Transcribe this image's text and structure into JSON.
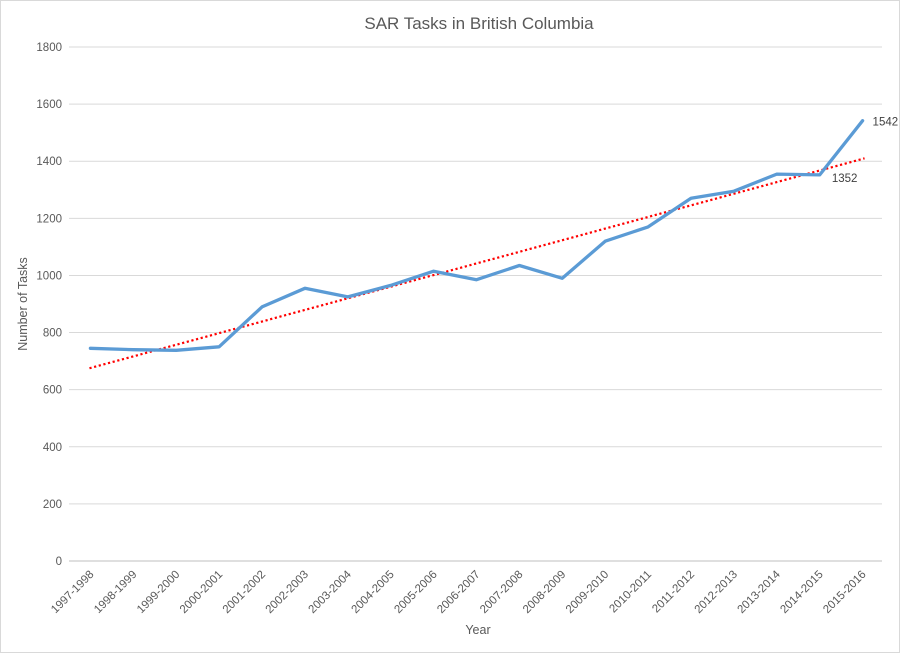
{
  "chart_data": {
    "type": "line",
    "title": "SAR Tasks in British Columbia",
    "xlabel": "Year",
    "ylabel": "Number of Tasks",
    "categories": [
      "1997-1998",
      "1998-1999",
      "1999-2000",
      "2000-2001",
      "2001-2002",
      "2002-2003",
      "2003-2004",
      "2004-2005",
      "2005-2006",
      "2006-2007",
      "2007-2008",
      "2008-2009",
      "2009-2010",
      "2010-2011",
      "2011-2012",
      "2012-2013",
      "2013-2014",
      "2014-2015",
      "2015-2016"
    ],
    "series": [
      {
        "name": "SAR Tasks",
        "color": "#5B9BD5",
        "values": [
          745,
          740,
          738,
          750,
          890,
          955,
          925,
          965,
          1015,
          985,
          1035,
          990,
          1120,
          1170,
          1270,
          1295,
          1355,
          1352,
          1542
        ]
      }
    ],
    "trendline": {
      "type": "linear",
      "style": "dotted",
      "color": "#FF0000",
      "start_value": 675,
      "end_value": 1410
    },
    "data_labels": [
      {
        "index": 17,
        "text": "1352",
        "position": "below-right"
      },
      {
        "index": 18,
        "text": "1542",
        "position": "right"
      }
    ],
    "y_axis": {
      "min": 0,
      "max": 1800,
      "step": 200,
      "ticks": [
        "0",
        "200",
        "400",
        "600",
        "800",
        "1000",
        "1200",
        "1400",
        "1600",
        "1800"
      ]
    },
    "x_axis": {
      "label_rotation_deg": 45
    },
    "grid": true,
    "legend": "none",
    "colors": {
      "series_line": "#5B9BD5",
      "trendline": "#FF0000",
      "gridline": "#D9D9D9",
      "axis_line": "#BFBFBF",
      "text_gray": "#595959",
      "data_label_text": "#404040"
    }
  }
}
